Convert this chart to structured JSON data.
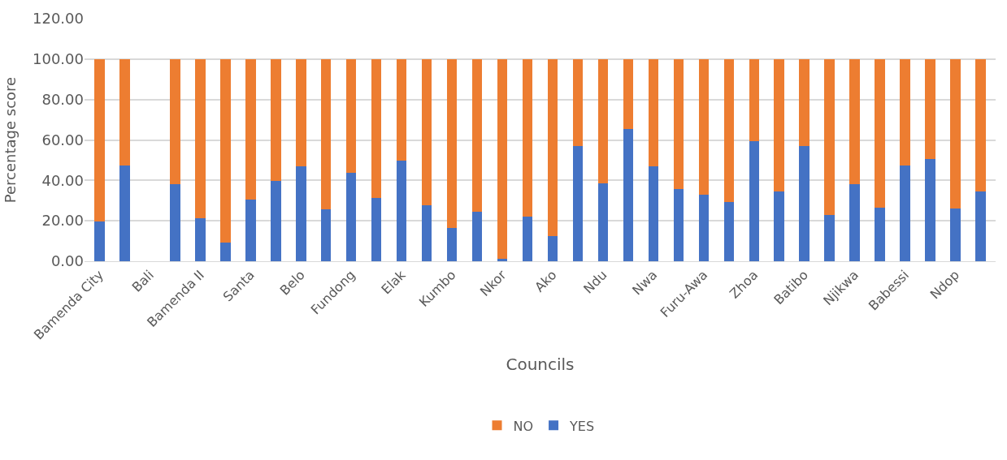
{
  "chart_data": {
    "type": "bar",
    "stacked": true,
    "xlabel": "Councils",
    "ylabel": "Percentage score",
    "categories": [
      "Bamenda City",
      null,
      "Bali",
      null,
      "Bamenda II",
      null,
      "Santa",
      null,
      "Belo",
      null,
      "Fundong",
      null,
      "Elak",
      null,
      "Kumbo",
      null,
      "Nkor",
      null,
      "Ako",
      null,
      "Ndu",
      null,
      "Nwa",
      null,
      "Furu-Awa",
      null,
      "Zhoa",
      null,
      "Batibo",
      null,
      "Njikwa",
      null,
      "Babessi",
      null,
      "Ndop",
      null
    ],
    "series": [
      {
        "name": "YES",
        "color": "#4472c4",
        "values": [
          19.7,
          47.2,
          null,
          38.0,
          21.4,
          9.1,
          30.4,
          39.9,
          46.9,
          25.5,
          43.7,
          31.4,
          49.6,
          27.8,
          16.3,
          24.6,
          1.3,
          21.9,
          12.3,
          56.8,
          38.6,
          65.4,
          46.9,
          35.6,
          33.0,
          29.3,
          59.4,
          34.6,
          56.8,
          22.7,
          38.2,
          26.5,
          47.3,
          50.6,
          26.1,
          34.6
        ]
      },
      {
        "name": "NO",
        "color": "#ed7d31",
        "values": [
          80.3,
          52.8,
          null,
          62.0,
          78.6,
          90.9,
          69.6,
          60.1,
          53.1,
          74.5,
          56.3,
          68.6,
          50.4,
          72.2,
          83.7,
          75.4,
          98.7,
          78.1,
          87.7,
          43.2,
          61.4,
          34.6,
          53.1,
          64.4,
          67.0,
          70.7,
          40.6,
          65.4,
          43.2,
          77.3,
          61.8,
          73.5,
          52.7,
          49.4,
          73.9,
          65.4
        ]
      }
    ],
    "ylim": [
      0,
      120
    ],
    "yticks": [
      {
        "value": 0,
        "label": "0.00"
      },
      {
        "value": 20,
        "label": "20.00"
      },
      {
        "value": 40,
        "label": "40.00"
      },
      {
        "value": 60,
        "label": "60.00"
      },
      {
        "value": 80,
        "label": "80.00"
      },
      {
        "value": 100,
        "label": "100.00"
      },
      {
        "value": 120,
        "label": "120.00"
      }
    ],
    "grid": "y",
    "legend": "bottom"
  }
}
